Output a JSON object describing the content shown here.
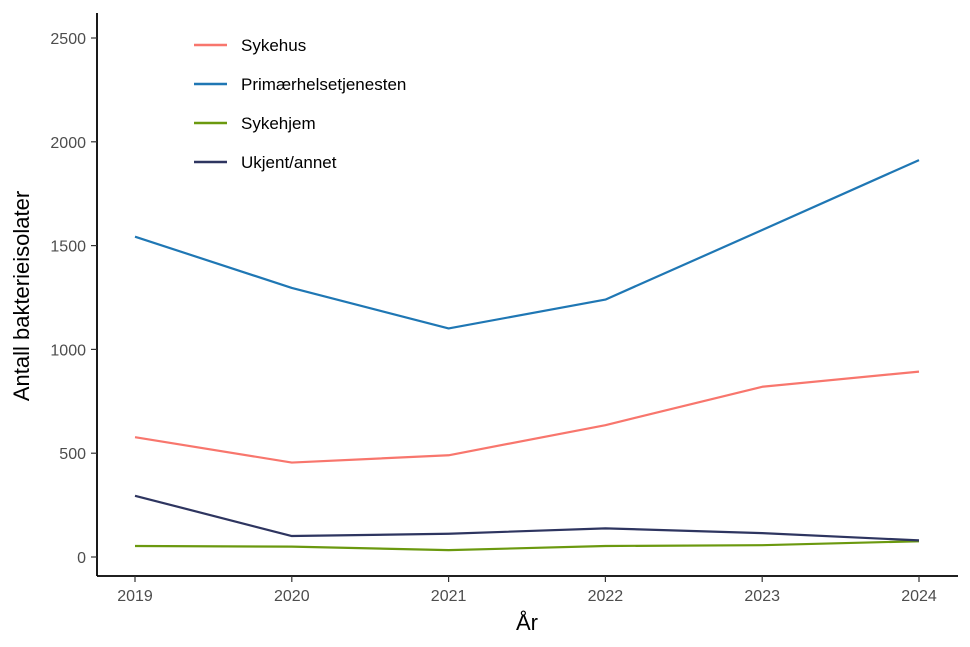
{
  "chart_data": {
    "type": "line",
    "title": "",
    "xlabel": "År",
    "ylabel": "Antall bakterieisolater",
    "x": [
      2019,
      2020,
      2021,
      2022,
      2023,
      2024
    ],
    "xlim": [
      2019,
      2024
    ],
    "ylim": [
      0,
      2500
    ],
    "yticks": [
      0,
      500,
      1000,
      1500,
      2000,
      2500
    ],
    "grid": false,
    "legend_position": "top-left",
    "series": [
      {
        "name": "Sykehus",
        "color": "#F8766D",
        "values": [
          577,
          455,
          490,
          635,
          820,
          893
        ]
      },
      {
        "name": "Primærhelsetjenesten",
        "color": "#1F77B4",
        "values": [
          1543,
          1296,
          1101,
          1240,
          1575,
          1912
        ]
      },
      {
        "name": "Sykehjem",
        "color": "#6B990F",
        "values": [
          53,
          50,
          33,
          53,
          57,
          76
        ]
      },
      {
        "name": "Ukjent/annet",
        "color": "#2E3560",
        "values": [
          295,
          101,
          112,
          138,
          115,
          80
        ]
      }
    ]
  }
}
